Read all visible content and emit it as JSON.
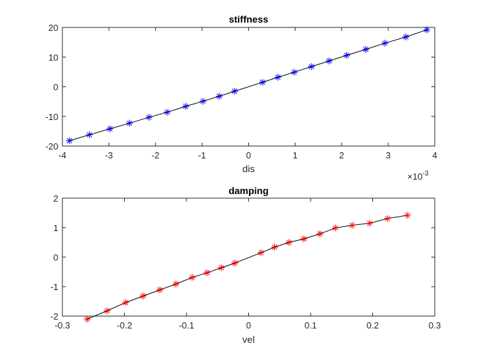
{
  "chart_data": [
    {
      "type": "line",
      "title": "stiffness",
      "xlabel": "dis",
      "ylabel": "",
      "x_exponent_label": "×10",
      "x_exponent_power": "-3",
      "xlim": [
        -4,
        4
      ],
      "ylim": [
        -20,
        20
      ],
      "xticks": [
        -4,
        -3,
        -2,
        -1,
        0,
        1,
        2,
        3,
        4
      ],
      "yticks": [
        -20,
        -10,
        0,
        10,
        20
      ],
      "xtick_labels": [
        "-4",
        "-3",
        "-2",
        "-1",
        "0",
        "1",
        "2",
        "3",
        "4"
      ],
      "ytick_labels": [
        "-20",
        "-10",
        "0",
        "10",
        "20"
      ],
      "grid": false,
      "series": [
        {
          "line_color": "#000000",
          "marker": "asterisk",
          "marker_color": "#0000ff",
          "x": [
            -3.85,
            -3.42,
            -2.98,
            -2.56,
            -2.14,
            -1.75,
            -1.35,
            -0.98,
            -0.63,
            -0.3,
            0.3,
            0.63,
            0.98,
            1.35,
            1.73,
            2.11,
            2.52,
            2.93,
            3.38,
            3.83
          ],
          "y": [
            -18.2,
            -16.2,
            -14.2,
            -12.3,
            -10.3,
            -8.6,
            -6.6,
            -4.9,
            -3.2,
            -1.5,
            1.5,
            3.2,
            4.9,
            6.8,
            8.7,
            10.6,
            12.6,
            14.7,
            16.8,
            19.2
          ]
        }
      ]
    },
    {
      "type": "line",
      "title": "damping",
      "xlabel": "vel",
      "ylabel": "",
      "xlim": [
        -0.3,
        0.3
      ],
      "ylim": [
        -2,
        2
      ],
      "xticks": [
        -0.3,
        -0.2,
        -0.1,
        0,
        0.1,
        0.2,
        0.3
      ],
      "yticks": [
        -2,
        -1,
        0,
        1,
        2
      ],
      "xtick_labels": [
        "-0.3",
        "-0.2",
        "-0.1",
        "0",
        "0.1",
        "0.2",
        "0.3"
      ],
      "ytick_labels": [
        "-2",
        "-1",
        "0",
        "1",
        "2"
      ],
      "grid": false,
      "series": [
        {
          "line_color": "#000000",
          "marker": "asterisk",
          "marker_color": "#ff0000",
          "x": [
            -0.26,
            -0.228,
            -0.198,
            -0.17,
            -0.143,
            -0.117,
            -0.091,
            -0.067,
            -0.044,
            -0.022,
            0.02,
            0.042,
            0.065,
            0.089,
            0.115,
            0.14,
            0.167,
            0.195,
            0.224,
            0.256
          ],
          "y": [
            -2.1,
            -1.82,
            -1.54,
            -1.32,
            -1.11,
            -0.91,
            -0.69,
            -0.53,
            -0.36,
            -0.2,
            0.15,
            0.34,
            0.5,
            0.62,
            0.79,
            0.99,
            1.08,
            1.15,
            1.31,
            1.42
          ]
        }
      ]
    }
  ]
}
